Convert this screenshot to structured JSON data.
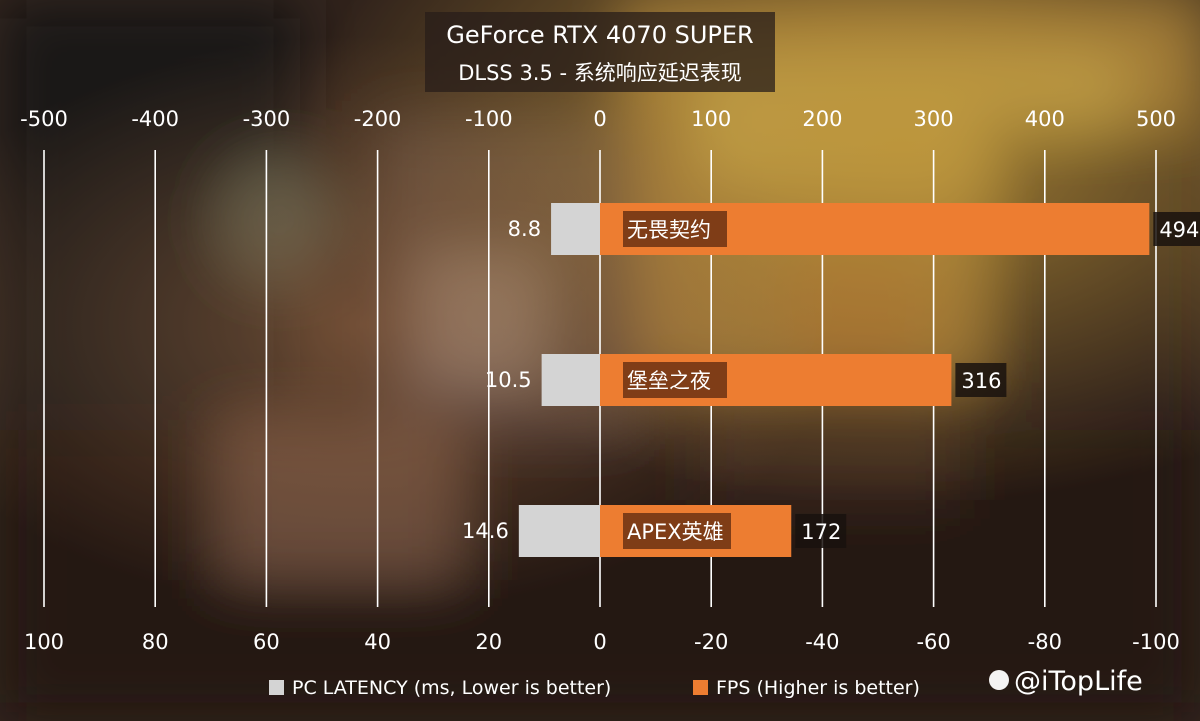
{
  "chart_data": {
    "type": "bar",
    "orientation": "horizontal",
    "title": "GeForce RTX 4070 SUPER",
    "subtitle": "DLSS 3.5 - 系统响应延迟表现",
    "categories": [
      "无畏契约",
      "堡垒之夜",
      "APEX英雄"
    ],
    "series": [
      {
        "name": "PC LATENCY (ms, Lower is better)",
        "color": "#d4d4d4",
        "values": [
          8.8,
          10.5,
          14.6
        ],
        "axis": "bottom",
        "direction": "left"
      },
      {
        "name": "FPS (Higher is better)",
        "color": "#ed7d31",
        "values": [
          494,
          316,
          172
        ],
        "axis": "top",
        "direction": "right"
      }
    ],
    "top_axis": {
      "range": [
        -500,
        500
      ],
      "ticks": [
        "-500",
        "-400",
        "-300",
        "-200",
        "-100",
        "0",
        "100",
        "200",
        "300",
        "400",
        "500"
      ]
    },
    "bottom_axis": {
      "range": [
        100,
        -100
      ],
      "ticks": [
        "100",
        "80",
        "60",
        "40",
        "20",
        "0",
        "-20",
        "-40",
        "-60",
        "-80",
        "-100"
      ]
    },
    "grid": true,
    "legend_position": "bottom"
  },
  "watermark": "@iTopLife"
}
